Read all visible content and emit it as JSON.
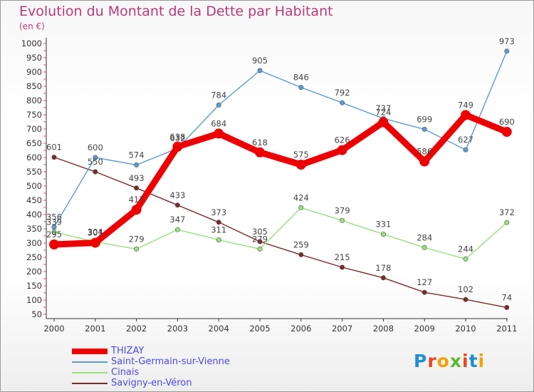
{
  "title": "Evolution du Montant de la Dette par Habitant",
  "subtitle": "(en €)",
  "logo_text": "Proxiti",
  "chart_data": {
    "type": "line",
    "title": "Evolution du Montant de la Dette par Habitant",
    "ylabel": "(en €)",
    "xlabel": "",
    "x": [
      "2000",
      "2001",
      "2002",
      "2003",
      "2004",
      "2005",
      "2006",
      "2007",
      "2008",
      "2009",
      "2010",
      "2011"
    ],
    "ylim": [
      50,
      1000
    ],
    "yticks": [
      50,
      100,
      150,
      200,
      250,
      300,
      350,
      400,
      450,
      500,
      550,
      600,
      650,
      700,
      750,
      800,
      850,
      900,
      950,
      1000
    ],
    "grid": false,
    "legend": "bottom-left",
    "series": [
      {
        "name": "THIZAY",
        "color": "#ee0000",
        "values": [
          295,
          301,
          417,
          638,
          684,
          618,
          575,
          626,
          724,
          586,
          749,
          690
        ]
      },
      {
        "name": "Saint-Germain-sur-Vienne",
        "color": "#5b9bd5",
        "values": [
          356,
          600,
          574,
          632,
          784,
          905,
          846,
          792,
          737,
          699,
          627,
          973
        ]
      },
      {
        "name": "Cinais",
        "color": "#99e07a",
        "values": [
          339,
          304,
          279,
          347,
          311,
          279,
          424,
          379,
          331,
          284,
          244,
          372
        ]
      },
      {
        "name": "Savigny-en-Véron",
        "color": "#7a2a2a",
        "values": [
          601,
          550,
          493,
          433,
          373,
          305,
          259,
          215,
          178,
          127,
          102,
          74
        ]
      }
    ]
  }
}
